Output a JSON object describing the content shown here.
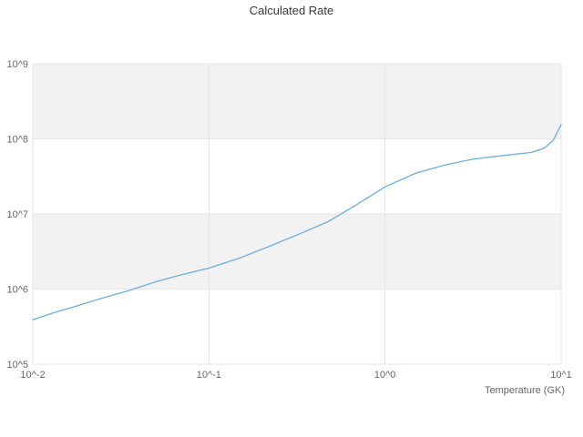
{
  "chart_data": {
    "type": "line",
    "title": "Calculated Rate",
    "xlabel": "Temperature (GK)",
    "ylabel": "",
    "xscale": "log",
    "yscale": "log",
    "xlim": [
      0.01,
      10
    ],
    "ylim": [
      100000.0,
      1000000000.0
    ],
    "x_tick_values": [
      0.01,
      0.1,
      1,
      10
    ],
    "x_tick_labels": [
      "10^-2",
      "10^-1",
      "10^0",
      "10^1"
    ],
    "y_tick_values": [
      100000.0,
      1000000.0,
      10000000.0,
      100000000.0,
      1000000000.0
    ],
    "y_tick_labels": [
      "10^5",
      "10^6",
      "10^7",
      "10^8",
      "10^9"
    ],
    "grid": true,
    "legend": "none",
    "colors": {
      "line": "#6badde",
      "band": "#f2f2f2",
      "grid": "#e6e6e6",
      "tick_text": "#666666",
      "title_text": "#383838"
    },
    "series": [
      {
        "name": "Calculated Rate",
        "x": [
          0.01,
          0.013,
          0.018,
          0.025,
          0.035,
          0.05,
          0.07,
          0.1,
          0.15,
          0.22,
          0.32,
          0.47,
          0.68,
          1.0,
          1.5,
          2.2,
          3.2,
          4.7,
          6.8,
          8.0,
          9.0,
          10.0
        ],
        "y": [
          390000.0,
          480000.0,
          600000.0,
          760000.0,
          950000.0,
          1250000.0,
          1550000.0,
          1900000.0,
          2600000.0,
          3700000.0,
          5300000.0,
          7800000.0,
          13000000.0,
          23000000.0,
          35000000.0,
          45000000.0,
          54000000.0,
          60000000.0,
          66000000.0,
          75000000.0,
          95000000.0,
          155000000.0
        ]
      }
    ]
  }
}
